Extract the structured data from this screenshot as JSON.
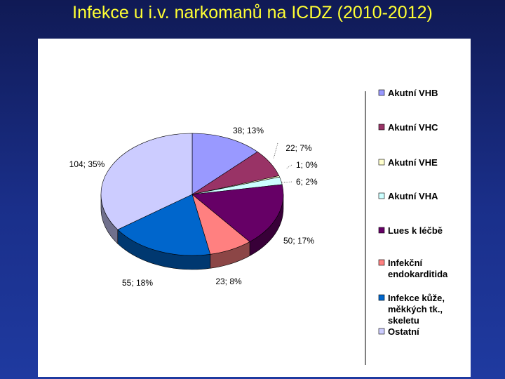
{
  "slide": {
    "title": "Infekce u i.v. narkomanů na ICDZ (2010-2012)"
  },
  "chart_data": {
    "type": "pie",
    "three_d": true,
    "legend_position": "right",
    "categories": [
      "Akutní VHB",
      "Akutní VHC",
      "Akutní VHE",
      "Akutní VHA",
      "Lues k léčbě",
      "Infekční endokarditida",
      "Infekce kůže, měkkých tk., skeletu",
      "Ostatní"
    ],
    "legend_lines": [
      [
        "Akutní VHB"
      ],
      [
        "Akutní VHC"
      ],
      [
        "Akutní VHE"
      ],
      [
        "Akutní VHA"
      ],
      [
        "Lues k léčbě"
      ],
      [
        "Infekční",
        "endokarditida"
      ],
      [
        "Infekce kůže,",
        "měkkých tk.,",
        "skeletu"
      ],
      [
        "Ostatní"
      ]
    ],
    "values": [
      38,
      22,
      1,
      6,
      50,
      23,
      55,
      104
    ],
    "percents": [
      13,
      7,
      0,
      2,
      17,
      8,
      18,
      35
    ],
    "data_labels": [
      "38; 13%",
      "22; 7%",
      "1; 0%",
      "6; 2%",
      "50; 17%",
      "23; 8%",
      "55; 18%",
      "104; 35%"
    ],
    "colors": [
      "#9999ff",
      "#993366",
      "#ffffcc",
      "#ccffff",
      "#660066",
      "#ff8080",
      "#0066cc",
      "#ccccff"
    ]
  }
}
